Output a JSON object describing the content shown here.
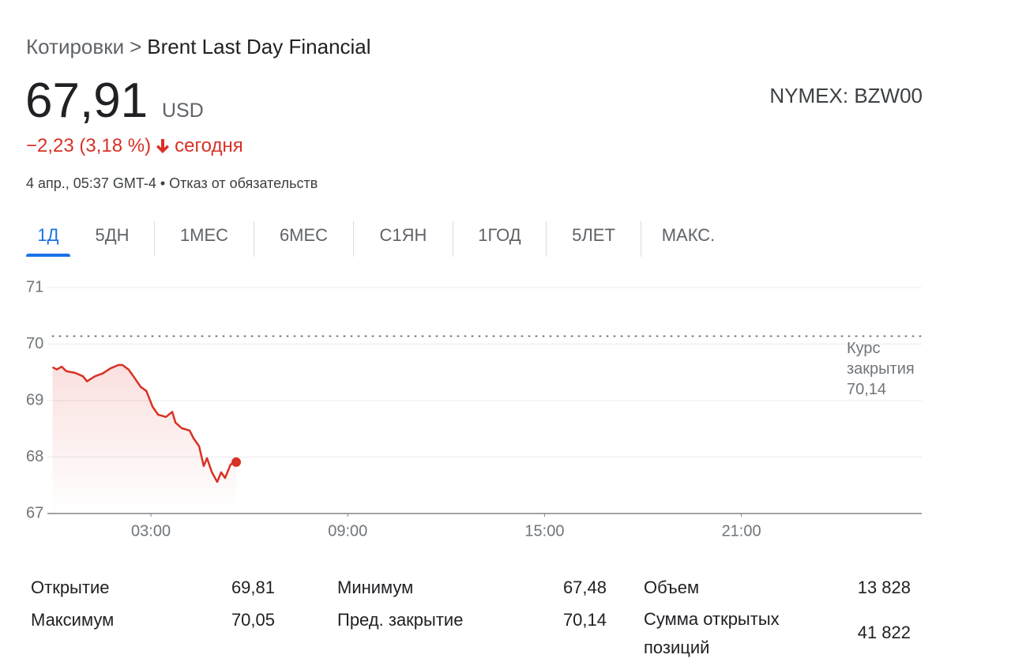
{
  "breadcrumb": [
    "Котировки",
    ">",
    "Brent Last Day Financial"
  ],
  "quote": {
    "price": "67,91",
    "currency": "USD",
    "change": "−2,23 (3,18 %)",
    "period": "сегодня",
    "timestamp": "4 апр., 05:37 GMT-4 •",
    "disclaimer": "Отказ от обязательств",
    "ticker": "NYMEX: BZW00"
  },
  "tabs": [
    "1Д",
    "5ДН",
    "1МЕС",
    "6МЕС",
    "С1ЯН",
    "1ГОД",
    "5ЛЕТ",
    "МАКС."
  ],
  "chart_data": {
    "type": "line",
    "x": [
      0,
      0.13,
      0.28,
      0.42,
      0.69,
      0.93,
      1.05,
      1.29,
      1.53,
      1.77,
      2.01,
      2.13,
      2.32,
      2.49,
      2.69,
      2.86,
      3.05,
      3.22,
      3.46,
      3.65,
      3.75,
      3.94,
      4.18,
      4.3,
      4.47,
      4.61,
      4.71,
      4.86,
      5.02,
      5.14,
      5.26,
      5.43,
      5.6
    ],
    "series": [
      {
        "name": "Brent Last Day Financial",
        "color": "#d93025",
        "values": [
          69.59,
          69.55,
          69.6,
          69.52,
          69.49,
          69.43,
          69.34,
          69.43,
          69.48,
          69.57,
          69.63,
          69.63,
          69.55,
          69.41,
          69.24,
          69.17,
          68.89,
          68.75,
          68.71,
          68.8,
          68.61,
          68.51,
          68.47,
          68.33,
          68.19,
          67.84,
          67.98,
          67.73,
          67.56,
          67.73,
          67.63,
          67.87,
          67.91
        ]
      }
    ],
    "xlim": [
      0,
      26.5
    ],
    "xticks": [
      {
        "value": 3,
        "label": "03:00"
      },
      {
        "value": 9,
        "label": "09:00"
      },
      {
        "value": 15,
        "label": "15:00"
      },
      {
        "value": 21,
        "label": "21:00"
      }
    ],
    "ylim": [
      67,
      71
    ],
    "yticks": [
      67,
      68,
      69,
      70,
      71
    ],
    "grid": true,
    "previous_close": {
      "label": "Курс закрытия",
      "value": 70.14,
      "value_label": "70,14"
    }
  },
  "stats": [
    [
      "Открытие",
      "69,81"
    ],
    [
      "Максимум",
      "70,05"
    ],
    [
      "Минимум",
      "67,48"
    ],
    [
      "Пред. закрытие",
      "70,14"
    ],
    [
      "Объем",
      "13 828"
    ],
    [
      "Сумма открытых позиций",
      "41 822"
    ]
  ]
}
